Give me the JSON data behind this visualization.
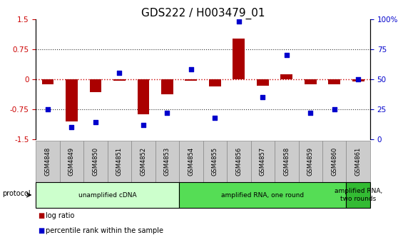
{
  "title": "GDS222 / H003479_01",
  "samples": [
    "GSM4848",
    "GSM4849",
    "GSM4850",
    "GSM4851",
    "GSM4852",
    "GSM4853",
    "GSM4854",
    "GSM4855",
    "GSM4856",
    "GSM4857",
    "GSM4858",
    "GSM4859",
    "GSM4860",
    "GSM4861"
  ],
  "log_ratio": [
    -0.13,
    -1.05,
    -0.32,
    -0.04,
    -0.87,
    -0.38,
    -0.03,
    -0.18,
    1.02,
    -0.16,
    0.13,
    -0.12,
    -0.12,
    -0.05
  ],
  "percentile": [
    25,
    10,
    14,
    55,
    12,
    22,
    58,
    18,
    98,
    35,
    70,
    22,
    25,
    50
  ],
  "ylim_left": [
    -1.5,
    1.5
  ],
  "ylim_right": [
    0,
    100
  ],
  "yticks_left": [
    -1.5,
    -0.75,
    0,
    0.75,
    1.5
  ],
  "yticks_right": [
    0,
    25,
    50,
    75,
    100
  ],
  "ytick_labels_right": [
    "0",
    "25",
    "50",
    "75",
    "100%"
  ],
  "bar_color": "#aa0000",
  "dot_color": "#0000cc",
  "hline_color": "#cc0000",
  "grid_color": "#333333",
  "protocol_regions": [
    {
      "label": "unamplified cDNA",
      "start": 0,
      "end": 5,
      "color": "#ccffcc"
    },
    {
      "label": "amplified RNA, one round",
      "start": 6,
      "end": 12,
      "color": "#55dd55"
    },
    {
      "label": "amplified RNA,\ntwo rounds",
      "start": 13,
      "end": 13,
      "color": "#33bb33"
    }
  ],
  "sample_box_color": "#cccccc",
  "sample_box_edge": "#888888",
  "protocol_label": "protocol",
  "legend_items": [
    {
      "label": "log ratio",
      "color": "#aa0000",
      "marker": "s"
    },
    {
      "label": "percentile rank within the sample",
      "color": "#0000cc",
      "marker": "s"
    }
  ],
  "title_fontsize": 11,
  "bar_width": 0.5,
  "dot_size": 22
}
